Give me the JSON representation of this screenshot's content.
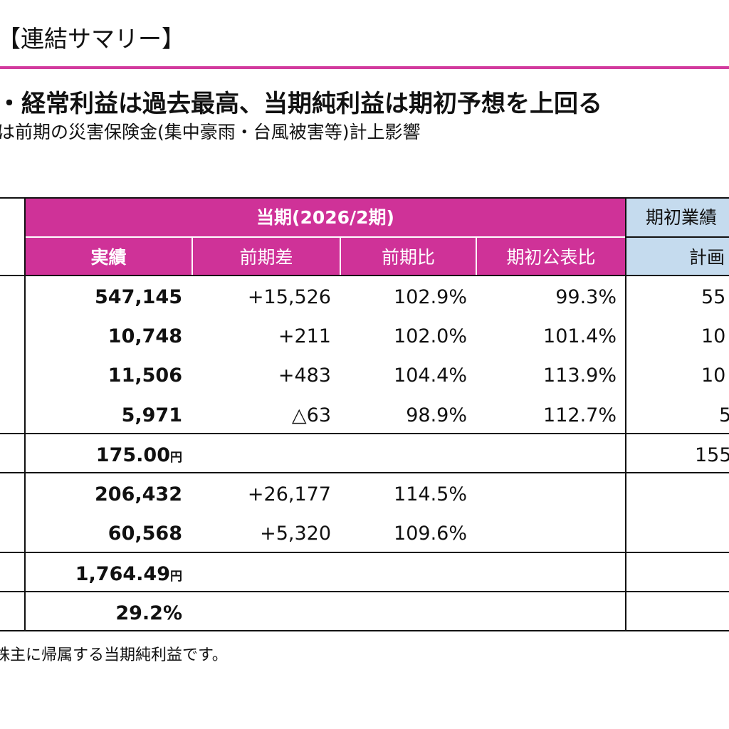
{
  "slide": {
    "title": "【連結サマリー】",
    "headline": "・経常利益は過去最高、当期純利益は期初予想を上回る",
    "subline": "は前期の災害保険金(集中豪雨・台風被害等)計上影響",
    "footnote": "株主に帰属する当期純利益です。"
  },
  "table": {
    "period_header": "当期(2026/2期)",
    "plan_header": "期初業績",
    "columns": {
      "actual": "実績",
      "diff": "前期差",
      "ratio": "前期比",
      "vs_forecast": "期初公表比",
      "plan": "計画"
    },
    "rows": [
      {
        "actual": "547,145",
        "unit": "",
        "diff": "+15,526",
        "ratio": "102.9%",
        "vs_forecast": "99.3%",
        "plan": "55"
      },
      {
        "actual": "10,748",
        "unit": "",
        "diff": "+211",
        "ratio": "102.0%",
        "vs_forecast": "101.4%",
        "plan": "10"
      },
      {
        "actual": "11,506",
        "unit": "",
        "diff": "+483",
        "ratio": "104.4%",
        "vs_forecast": "113.9%",
        "plan": "10"
      },
      {
        "actual": "5,971",
        "unit": "",
        "diff": "△63",
        "ratio": "98.9%",
        "vs_forecast": "112.7%",
        "plan": "5"
      },
      {
        "actual": "175.00",
        "unit": "円",
        "diff": "",
        "ratio": "",
        "vs_forecast": "",
        "plan": "155"
      },
      {
        "actual": "206,432",
        "unit": "",
        "diff": "+26,177",
        "ratio": "114.5%",
        "vs_forecast": "",
        "plan": ""
      },
      {
        "actual": "60,568",
        "unit": "",
        "diff": "+5,320",
        "ratio": "109.6%",
        "vs_forecast": "",
        "plan": ""
      },
      {
        "actual": "1,764.49",
        "unit": "円",
        "diff": "",
        "ratio": "",
        "vs_forecast": "",
        "plan": ""
      },
      {
        "actual": "29.2%",
        "unit": "",
        "diff": "",
        "ratio": "",
        "vs_forecast": "",
        "plan": ""
      }
    ]
  },
  "colors": {
    "accent_magenta": "#cf3298",
    "rule_magenta": "#d23a9e",
    "plan_header_blue": "#c5dbee"
  }
}
